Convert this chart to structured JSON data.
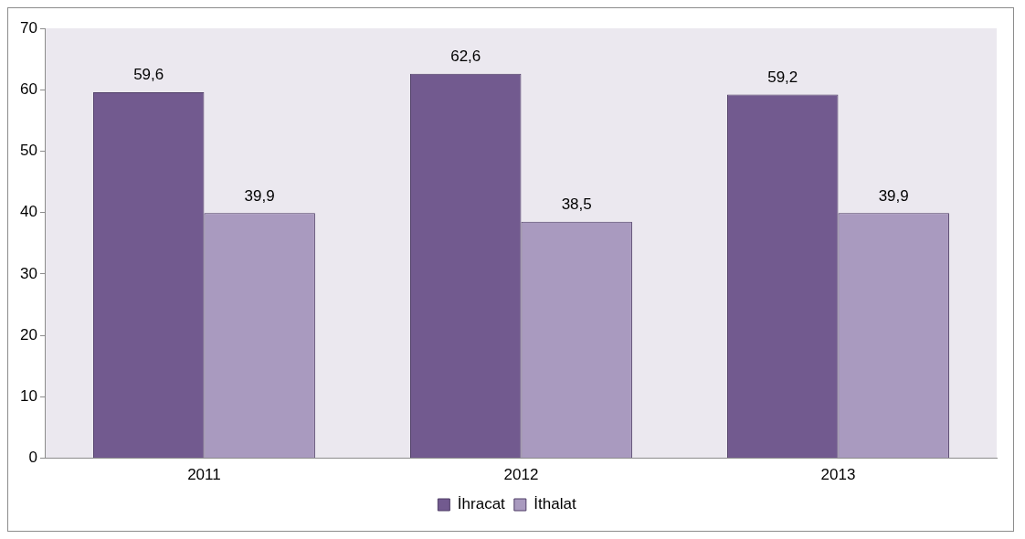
{
  "chart_data": {
    "type": "bar",
    "categories": [
      "2011",
      "2012",
      "2013"
    ],
    "series": [
      {
        "name": "İhracat",
        "color": "#725a8f",
        "values": [
          59.6,
          62.6,
          59.2
        ],
        "value_labels": [
          "59,6",
          "62,6",
          "59,2"
        ]
      },
      {
        "name": "İthalat",
        "color": "#a99abf",
        "values": [
          39.9,
          38.5,
          39.9
        ],
        "value_labels": [
          "39,9",
          "38,5",
          "39,9"
        ]
      }
    ],
    "ylim": [
      0,
      70
    ],
    "yticks": [
      0,
      10,
      20,
      30,
      40,
      50,
      60,
      70
    ],
    "grid": false,
    "legend": "bottom"
  }
}
